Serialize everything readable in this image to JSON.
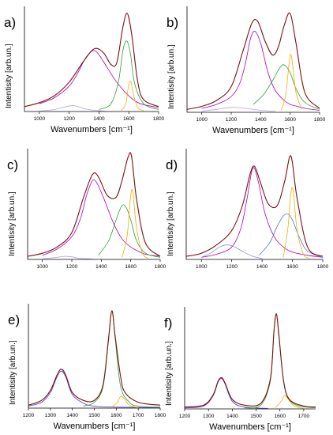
{
  "chart_data": [
    {
      "panel_label": "a)",
      "type": "line",
      "xlabel": "Wavenumbers [cm⁻¹]",
      "ylabel": "Intentisity [arb.un.]",
      "xlim": [
        900,
        1800
      ],
      "xticks": [
        "1000",
        "1200",
        "1400",
        "1600",
        "1800"
      ],
      "series": [
        {
          "color": "#b000b0",
          "x": [
            1000,
            1100,
            1200,
            1260,
            1300,
            1340,
            1370,
            1400,
            1450,
            1500,
            1550,
            1600,
            1650,
            1700,
            1800
          ],
          "y": [
            8,
            14,
            26,
            40,
            52,
            60,
            62,
            58,
            46,
            34,
            24,
            16,
            10,
            7,
            4
          ]
        },
        {
          "color": "#b8a0e0",
          "x": [
            1000,
            1100,
            1180,
            1230,
            1280,
            1350,
            1450
          ],
          "y": [
            0.5,
            2,
            5,
            6,
            4,
            1.5,
            0.5
          ]
        },
        {
          "color": "#2e9c3a",
          "x": [
            1400,
            1480,
            1530,
            1560,
            1585,
            1610,
            1640,
            1700,
            1800
          ],
          "y": [
            2,
            8,
            30,
            62,
            72,
            60,
            28,
            8,
            2
          ]
        },
        {
          "color": "#f0b000",
          "x": [
            1550,
            1580,
            1600,
            1615,
            1630,
            1660,
            1700
          ],
          "y": [
            1,
            8,
            28,
            30,
            18,
            4,
            1
          ]
        },
        {
          "color": "#7a1010",
          "x": [
            900,
            1000,
            1100,
            1200,
            1300,
            1370,
            1430,
            1480,
            1520,
            1560,
            1590,
            1620,
            1660,
            1700,
            1800
          ],
          "y": [
            5,
            9,
            16,
            30,
            52,
            64,
            60,
            48,
            50,
            86,
            100,
            78,
            30,
            12,
            5
          ]
        }
      ]
    },
    {
      "panel_label": "b)",
      "type": "line",
      "xlabel": "Wavenumbers [cm⁻¹]",
      "ylabel": "Intentisity [arb.un.]",
      "xlim": [
        900,
        1800
      ],
      "xticks": [
        "1000",
        "1200",
        "1400",
        "1600",
        "1800"
      ],
      "series": [
        {
          "color": "#b000b0",
          "x": [
            1000,
            1100,
            1200,
            1260,
            1300,
            1330,
            1360,
            1400,
            1450,
            1500,
            1560,
            1600,
            1650,
            1700,
            1800
          ],
          "y": [
            4,
            8,
            16,
            30,
            52,
            74,
            82,
            70,
            40,
            22,
            12,
            8,
            6,
            4,
            2
          ]
        },
        {
          "color": "#b8a0e0",
          "x": [
            1000,
            1100,
            1200,
            1300,
            1400,
            1500
          ],
          "y": [
            1,
            3,
            5,
            4,
            2,
            1
          ]
        },
        {
          "color": "#2e9c3a",
          "x": [
            1350,
            1420,
            1480,
            1530,
            1560,
            1600,
            1640,
            1700,
            1800
          ],
          "y": [
            8,
            18,
            32,
            45,
            48,
            40,
            24,
            10,
            3
          ]
        },
        {
          "color": "#f0b000",
          "x": [
            1540,
            1570,
            1595,
            1610,
            1640,
            1680
          ],
          "y": [
            2,
            18,
            52,
            56,
            20,
            3
          ]
        },
        {
          "color": "#7a1010",
          "x": [
            900,
            1000,
            1100,
            1200,
            1280,
            1340,
            1380,
            1430,
            1480,
            1520,
            1560,
            1600,
            1640,
            1700,
            1800
          ],
          "y": [
            3,
            6,
            12,
            26,
            62,
            90,
            92,
            72,
            58,
            66,
            88,
            100,
            70,
            20,
            4
          ]
        }
      ]
    },
    {
      "panel_label": "c)",
      "type": "line",
      "xlabel": "",
      "ylabel": "Intentisity [arb.un.]",
      "xlim": [
        900,
        1800
      ],
      "xticks": [
        "1000",
        "1200",
        "1400",
        "1600",
        "1800"
      ],
      "series": [
        {
          "color": "#b000b0",
          "x": [
            1000,
            1100,
            1200,
            1260,
            1300,
            1340,
            1370,
            1420,
            1480,
            1540,
            1600,
            1650,
            1700,
            1800
          ],
          "y": [
            4,
            10,
            22,
            40,
            62,
            76,
            74,
            58,
            36,
            20,
            12,
            8,
            5,
            3
          ]
        },
        {
          "color": "#b8a0e0",
          "x": [
            1000,
            1100,
            1150,
            1200,
            1260,
            1350
          ],
          "y": [
            0.5,
            2,
            3,
            2.5,
            1,
            0.5
          ]
        },
        {
          "color": "#2e9c3a",
          "x": [
            1380,
            1450,
            1500,
            1540,
            1570,
            1600,
            1640,
            1700,
            1800
          ],
          "y": [
            4,
            18,
            38,
            52,
            50,
            38,
            18,
            6,
            2
          ]
        },
        {
          "color": "#f0b000",
          "x": [
            1540,
            1575,
            1600,
            1615,
            1640,
            1680,
            1720
          ],
          "y": [
            2,
            22,
            62,
            64,
            30,
            6,
            1
          ]
        },
        {
          "color": "#7a1010",
          "x": [
            900,
            1000,
            1100,
            1200,
            1280,
            1340,
            1380,
            1440,
            1500,
            1540,
            1580,
            1605,
            1640,
            1700,
            1800
          ],
          "y": [
            3,
            6,
            12,
            26,
            60,
            82,
            80,
            62,
            60,
            76,
            98,
            100,
            58,
            16,
            3
          ]
        }
      ]
    },
    {
      "panel_label": "d)",
      "type": "line",
      "xlabel": "",
      "ylabel": "Intentisity [arb.un.]",
      "xlim": [
        900,
        1800
      ],
      "xticks": [
        "1000",
        "1200",
        "1400",
        "1600",
        "1800"
      ],
      "series": [
        {
          "color": "#b000b0",
          "x": [
            1000,
            1100,
            1200,
            1260,
            1300,
            1330,
            1350,
            1380,
            1420,
            1480,
            1540,
            1600,
            1700,
            1800
          ],
          "y": [
            2,
            5,
            12,
            30,
            58,
            84,
            88,
            72,
            44,
            22,
            12,
            7,
            4,
            2
          ]
        },
        {
          "color": "#9090d0",
          "x": [
            1000,
            1060,
            1120,
            1170,
            1220,
            1280,
            1340,
            1400
          ],
          "y": [
            2,
            6,
            12,
            14,
            12,
            7,
            3,
            1
          ]
        },
        {
          "color": "#5070d0",
          "x": [
            1380,
            1450,
            1500,
            1540,
            1570,
            1600,
            1650,
            1700,
            1800
          ],
          "y": [
            4,
            16,
            32,
            42,
            44,
            38,
            20,
            8,
            2
          ]
        },
        {
          "color": "#f0b000",
          "x": [
            1540,
            1570,
            1590,
            1605,
            1630,
            1670,
            1710
          ],
          "y": [
            2,
            30,
            64,
            66,
            30,
            6,
            1
          ]
        },
        {
          "color": "#7a1010",
          "x": [
            900,
            1000,
            1100,
            1200,
            1270,
            1320,
            1350,
            1390,
            1440,
            1500,
            1550,
            1590,
            1630,
            1700,
            1800
          ],
          "y": [
            3,
            6,
            14,
            28,
            52,
            82,
            90,
            74,
            54,
            52,
            76,
            100,
            60,
            12,
            3
          ]
        }
      ]
    },
    {
      "panel_label": "e)",
      "type": "line",
      "xlabel": "Wavenumbers [cm⁻¹]",
      "ylabel": "Intentisity [arb.un.]",
      "xlim": [
        1200,
        1800
      ],
      "xticks": [
        "1200",
        "1300",
        "1400",
        "1500",
        "1600",
        "1700",
        "1800"
      ],
      "series": [
        {
          "color": "#5030c0",
          "x": [
            1200,
            1260,
            1300,
            1330,
            1350,
            1370,
            1400,
            1450,
            1500,
            1600,
            1800
          ],
          "y": [
            2,
            6,
            16,
            32,
            38,
            32,
            14,
            5,
            2,
            1,
            0.5
          ]
        },
        {
          "color": "#2e9c3a",
          "x": [
            1450,
            1500,
            1540,
            1565,
            1580,
            1595,
            1620,
            1660,
            1700,
            1800
          ],
          "y": [
            2,
            6,
            22,
            70,
            100,
            72,
            22,
            6,
            2,
            1
          ]
        },
        {
          "color": "#f0b000",
          "x": [
            1580,
            1605,
            1620,
            1635,
            1660,
            1700
          ],
          "y": [
            1,
            6,
            12,
            10,
            3,
            0.5
          ]
        },
        {
          "color": "#7a1010",
          "x": [
            1200,
            1260,
            1300,
            1330,
            1350,
            1370,
            1400,
            1450,
            1500,
            1540,
            1565,
            1580,
            1595,
            1620,
            1640,
            1700,
            1800
          ],
          "y": [
            3,
            8,
            18,
            34,
            40,
            34,
            16,
            8,
            8,
            24,
            72,
            100,
            74,
            32,
            16,
            6,
            3
          ]
        }
      ]
    },
    {
      "panel_label": "f)",
      "type": "line",
      "xlabel": "Wavenumbers [cm⁻¹]",
      "ylabel": "Intentisity [arb.un.]",
      "xlim": [
        1200,
        1750
      ],
      "xticks": [
        "1200",
        "1300",
        "1400",
        "1500",
        "1600",
        "1700"
      ],
      "series": [
        {
          "color": "#5030c0",
          "x": [
            1200,
            1280,
            1320,
            1340,
            1355,
            1370,
            1400,
            1450,
            1550
          ],
          "y": [
            1,
            3,
            14,
            28,
            32,
            26,
            8,
            2,
            0.5
          ]
        },
        {
          "color": "#2e9c3a",
          "x": [
            1450,
            1520,
            1560,
            1575,
            1585,
            1595,
            1620,
            1660,
            1750
          ],
          "y": [
            1,
            4,
            30,
            80,
            100,
            78,
            22,
            5,
            1
          ]
        },
        {
          "color": "#f0b000",
          "x": [
            1580,
            1605,
            1620,
            1635,
            1660,
            1700
          ],
          "y": [
            1,
            8,
            14,
            10,
            3,
            0.5
          ]
        },
        {
          "color": "#7a1010",
          "x": [
            1200,
            1280,
            1320,
            1340,
            1355,
            1370,
            1400,
            1450,
            1520,
            1560,
            1575,
            1585,
            1595,
            1615,
            1640,
            1700,
            1750
          ],
          "y": [
            2,
            4,
            15,
            29,
            33,
            27,
            10,
            4,
            6,
            32,
            82,
            100,
            80,
            30,
            10,
            3,
            2
          ]
        }
      ]
    }
  ]
}
